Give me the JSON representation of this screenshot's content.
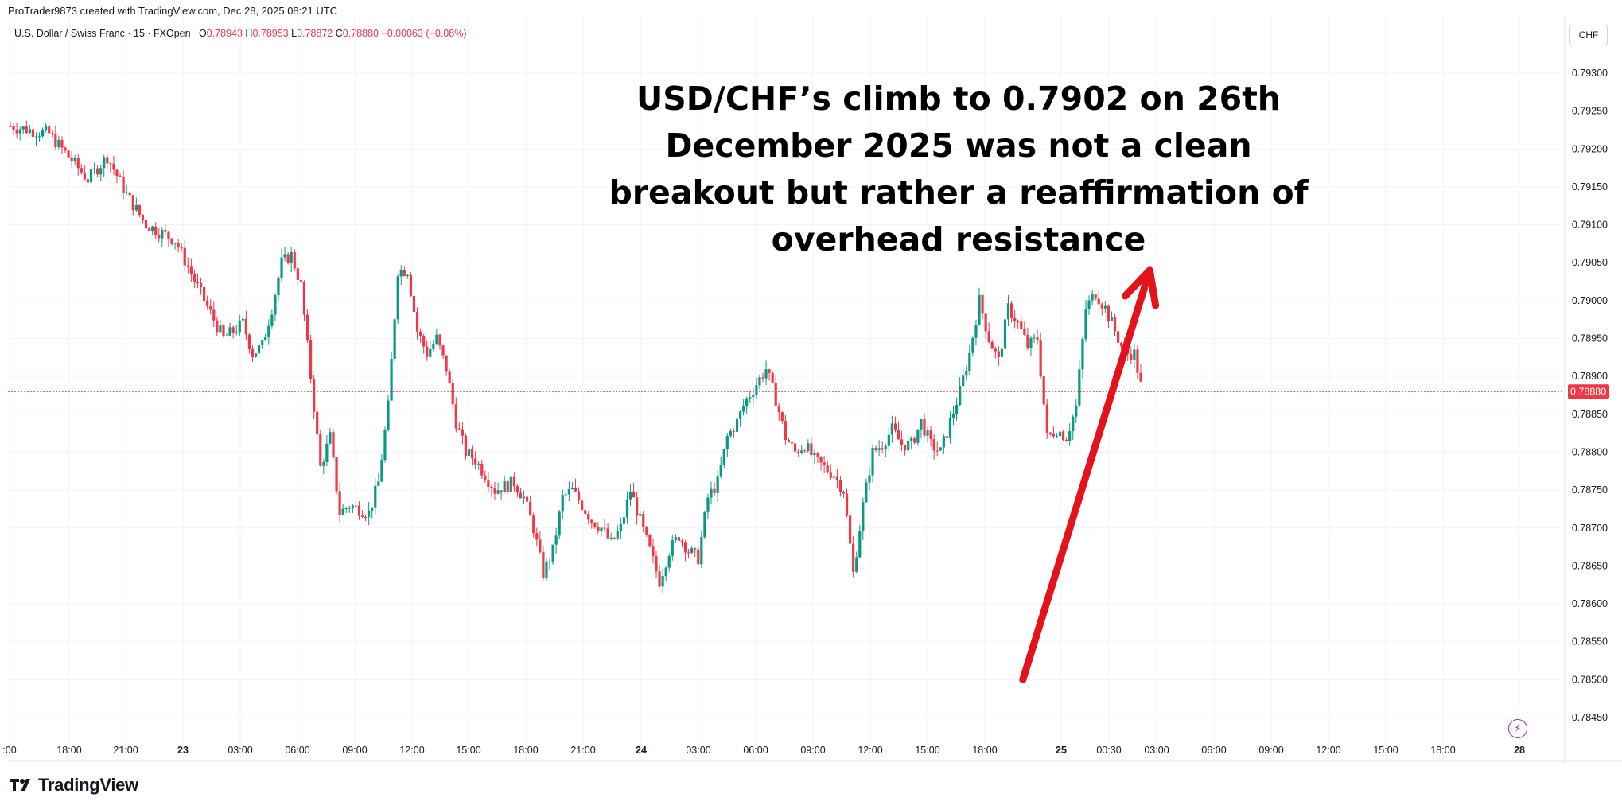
{
  "attribution": "ProTrader9873 created with TradingView.com, Dec 28, 2025 08:21 UTC",
  "symbol": {
    "name": "U.S. Dollar / Swiss Franc · 15 · FXOpen",
    "o_label": "O",
    "o_value": "0.78943",
    "h_label": "H",
    "h_value": "0.78953",
    "l_label": "L",
    "l_value": "0.78872",
    "c_label": "C",
    "c_value": "0.78880",
    "change": "−0.00063 (−0.08%)"
  },
  "currency": "CHF",
  "headline": "USD/CHF’s climb to 0.7902 on 26th December 2025 was not a clean breakout but rather a reaffirmation of overhead resistance",
  "logo": {
    "text": "TradingView",
    "icon": "tradingview-logo-icon"
  },
  "flash_icon": "lightning-icon",
  "colors": {
    "up": "#089981",
    "down": "#f23645",
    "arrow": "#e3121b",
    "last_price": "#f23645"
  },
  "chart_data": {
    "type": "candlestick",
    "grid": true,
    "ylim": [
      0.7843,
      0.7932
    ],
    "y_ticks": [
      "0.79300",
      "0.79250",
      "0.79200",
      "0.79150",
      "0.79100",
      "0.79050",
      "0.79000",
      "0.78950",
      "0.78900",
      "0.78850",
      "0.78800",
      "0.78750",
      "0.78700",
      "0.78650",
      "0.78600",
      "0.78550",
      "0.78500",
      "0.78450"
    ],
    "x_ticks": [
      ":00",
      "18:00",
      "21:00",
      "23",
      "03:00",
      "06:00",
      "09:00",
      "12:00",
      "15:00",
      "18:00",
      "21:00",
      "24",
      "03:00",
      "06:00",
      "09:00",
      "12:00",
      "15:00",
      "18:00",
      "25",
      "00:30",
      "03:00",
      "06:00",
      "09:00",
      "12:00",
      "15:00",
      "18:00",
      "28"
    ],
    "bold_x_ticks": [
      "23",
      "24",
      "25",
      "28"
    ],
    "last_price": "0.78880",
    "path": [
      [
        0,
        0.7923
      ],
      [
        4,
        0.7922
      ],
      [
        8,
        0.7916
      ],
      [
        10,
        0.7919
      ],
      [
        12,
        0.7914
      ],
      [
        14,
        0.791
      ],
      [
        17,
        0.7908
      ],
      [
        20,
        0.79
      ],
      [
        22,
        0.7895
      ],
      [
        24,
        0.7897
      ],
      [
        25,
        0.7893
      ],
      [
        26,
        0.7894
      ],
      [
        27,
        0.7899
      ],
      [
        28,
        0.7905
      ],
      [
        29,
        0.7906
      ],
      [
        30,
        0.7902
      ],
      [
        31,
        0.789
      ],
      [
        32,
        0.7878
      ],
      [
        33,
        0.7882
      ],
      [
        34,
        0.7872
      ],
      [
        35,
        0.7873
      ],
      [
        37,
        0.7872
      ],
      [
        38,
        0.7876
      ],
      [
        39,
        0.7886
      ],
      [
        40,
        0.7904
      ],
      [
        41,
        0.7904
      ],
      [
        42,
        0.7896
      ],
      [
        43,
        0.7893
      ],
      [
        44,
        0.7895
      ],
      [
        45,
        0.7891
      ],
      [
        46,
        0.7884
      ],
      [
        47,
        0.788
      ],
      [
        48,
        0.7879
      ],
      [
        49,
        0.7877
      ],
      [
        50,
        0.7875
      ],
      [
        52,
        0.7876
      ],
      [
        53,
        0.7874
      ],
      [
        54,
        0.787
      ],
      [
        55,
        0.7864
      ],
      [
        56,
        0.7867
      ],
      [
        57,
        0.7874
      ],
      [
        58,
        0.7875
      ],
      [
        59,
        0.7873
      ],
      [
        60,
        0.7871
      ],
      [
        61,
        0.787
      ],
      [
        62,
        0.7868
      ],
      [
        63,
        0.787
      ],
      [
        64,
        0.7875
      ],
      [
        65,
        0.7871
      ],
      [
        66,
        0.7867
      ],
      [
        67,
        0.7863
      ],
      [
        68,
        0.7867
      ],
      [
        69,
        0.7869
      ],
      [
        70,
        0.7867
      ],
      [
        71,
        0.7866
      ],
      [
        72,
        0.7874
      ],
      [
        73,
        0.7876
      ],
      [
        74,
        0.7882
      ],
      [
        75,
        0.7884
      ],
      [
        76,
        0.7887
      ],
      [
        77,
        0.7889
      ],
      [
        78,
        0.7891
      ],
      [
        79,
        0.7887
      ],
      [
        80,
        0.7882
      ],
      [
        81,
        0.788
      ],
      [
        82,
        0.7881
      ],
      [
        83,
        0.7879
      ],
      [
        84,
        0.7878
      ],
      [
        85,
        0.7877
      ],
      [
        86,
        0.7875
      ],
      [
        87,
        0.7864
      ],
      [
        88,
        0.7873
      ],
      [
        89,
        0.788
      ],
      [
        90,
        0.7881
      ],
      [
        91,
        0.7883
      ],
      [
        92,
        0.7881
      ],
      [
        93,
        0.7881
      ],
      [
        94,
        0.7884
      ],
      [
        95,
        0.7881
      ],
      [
        96,
        0.788
      ],
      [
        97,
        0.7884
      ],
      [
        98,
        0.7888
      ],
      [
        99,
        0.7893
      ],
      [
        100,
        0.79
      ],
      [
        101,
        0.7895
      ],
      [
        102,
        0.7892
      ],
      [
        103,
        0.7899
      ],
      [
        104,
        0.7897
      ],
      [
        105,
        0.7894
      ],
      [
        106,
        0.7895
      ],
      [
        107,
        0.7882
      ],
      [
        108,
        0.7883
      ],
      [
        109,
        0.7882
      ],
      [
        110,
        0.7886
      ],
      [
        111,
        0.7899
      ],
      [
        112,
        0.7901
      ],
      [
        113,
        0.7899
      ],
      [
        114,
        0.7896
      ],
      [
        115,
        0.7893
      ],
      [
        116,
        0.7893
      ],
      [
        116.8,
        0.7888
      ]
    ],
    "annotation_arrow": {
      "from": [
        104.5,
        0.785
      ],
      "to": [
        117.6,
        0.7904
      ]
    }
  }
}
